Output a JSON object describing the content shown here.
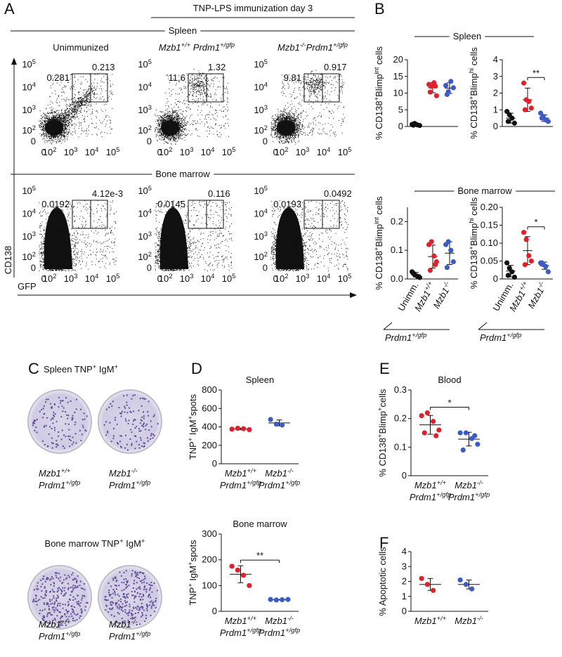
{
  "panel_labels": [
    "A",
    "B",
    "C",
    "D",
    "E",
    "F"
  ],
  "flow": {
    "header": "TNP-LPS immunization day 3",
    "columns": [
      [
        "Unimmunized"
      ],
      [
        "Mzb1",
        "+/+",
        " Prdm1",
        "+/gfp"
      ],
      [
        "Mzb1",
        "-/-",
        "Prdm1",
        "+/gfp"
      ]
    ],
    "rows": [
      {
        "title": "Spleen",
        "gates": [
          [
            0.281,
            0.213
          ],
          [
            11.6,
            1.32
          ],
          [
            9.81,
            0.917
          ]
        ]
      },
      {
        "title": "Bone marrow",
        "gates": [
          [
            0.0192,
            {
              "value": 0.00412,
              "label": "4.12e-3"
            }
          ],
          [
            0.0145,
            0.116
          ],
          [
            0.0193,
            0.0492
          ]
        ]
      }
    ],
    "y_ticks": [
      [
        "10",
        "5"
      ],
      [
        "10",
        "4"
      ],
      [
        "10",
        "3"
      ],
      [
        "10",
        "2"
      ],
      [
        "0"
      ]
    ],
    "x_ticks": [
      [
        "0"
      ],
      [
        "10",
        "2"
      ],
      [
        "10",
        "3"
      ],
      [
        "10",
        "4"
      ],
      [
        "10",
        "5"
      ]
    ],
    "y_label": "CD138",
    "x_label": "GFP"
  },
  "sections": [
    "Spleen",
    "Bone marrow"
  ],
  "elispot": {
    "rows": [
      {
        "title": [
          "Spleen TNP",
          "+",
          " IgM",
          "+"
        ],
        "wells": [
          [
            [
              "Mzb1",
              "+/+"
            ],
            [
              "Prdm1",
              "+/gfp"
            ]
          ],
          [
            [
              "Mzb1",
              "-/-"
            ],
            [
              "Prdm1",
              "+/gfp"
            ]
          ]
        ]
      },
      {
        "title": [
          "Bone marrow TNP",
          "+",
          " IgM",
          "+"
        ],
        "wells": [
          [
            [
              "Mzb1",
              "+/+"
            ],
            [
              "Prdm1",
              "+/gfp"
            ]
          ],
          [
            [
              "Mzb1",
              "-/-"
            ],
            [
              "Prdm1",
              "+/gfp"
            ]
          ]
        ]
      }
    ]
  },
  "chart_data": [
    {
      "type": "dot",
      "y_label": [
        "% CD138",
        "+",
        "Blimp",
        "int",
        " cells"
      ],
      "ylim": [
        0,
        20
      ],
      "yticks": [
        0,
        5,
        10,
        15,
        20
      ],
      "series": [
        {
          "color": "#111111",
          "values": [
            0.6,
            0.9,
            0.5,
            0.3,
            0.4
          ],
          "mean": 0.5,
          "sd": 0.2
        },
        {
          "color": "#e0202a",
          "values": [
            12.6,
            12.0,
            13.1,
            9.2,
            10.3,
            12.1
          ],
          "mean": 11.6,
          "sd": 1.5
        },
        {
          "color": "#3c5bc4",
          "values": [
            12.3,
            10.4,
            13.5,
            11.6,
            9.6
          ],
          "mean": 11.5,
          "sd": 1.6
        }
      ]
    },
    {
      "type": "dot",
      "y_label": [
        "% CD138",
        "+",
        "Blimp",
        "hi",
        " cells"
      ],
      "ylim": [
        0,
        4
      ],
      "yticks": [
        0,
        1,
        2,
        3,
        4
      ],
      "significance": "**",
      "series": [
        {
          "color": "#111111",
          "values": [
            0.9,
            0.7,
            0.5,
            0.2,
            0.3
          ],
          "mean": 0.5,
          "sd": 0.3
        },
        {
          "color": "#e0202a",
          "values": [
            2.6,
            1.6,
            1.5,
            1.1,
            1.0
          ],
          "mean": 1.6,
          "sd": 0.7
        },
        {
          "color": "#3c5bc4",
          "values": [
            0.8,
            0.6,
            0.4,
            0.3,
            0.5
          ],
          "mean": 0.5,
          "sd": 0.2
        }
      ]
    },
    {
      "type": "dot",
      "y_label": [
        "% CD138",
        "+",
        "Blimp",
        "int",
        " cells"
      ],
      "ylim": [
        0,
        0.25
      ],
      "yticks": [
        {
          "value": 0,
          "label": "0.0"
        },
        0.1,
        0.2
      ],
      "x_group_label": [
        "Prdm1",
        "+/gfp"
      ],
      "series": [
        {
          "name": [
            [
              "Unimm."
            ]
          ],
          "color": "#111111",
          "values": [
            0.025,
            0.015,
            0.01,
            0.005,
            0.02
          ],
          "mean": 0.015,
          "sd": 0.008
        },
        {
          "name": [
            [
              "Mzb1",
              "+/+"
            ]
          ],
          "color": "#e0202a",
          "values": [
            0.12,
            0.13,
            0.08,
            0.06,
            0.03,
            0.05
          ],
          "mean": 0.078,
          "sd": 0.04
        },
        {
          "name": [
            [
              "Mzb1",
              "-/-"
            ]
          ],
          "color": "#3c5bc4",
          "values": [
            0.12,
            0.13,
            0.1,
            0.06,
            0.04
          ],
          "mean": 0.09,
          "sd": 0.04
        }
      ]
    },
    {
      "type": "dot",
      "y_label": [
        "% CD138",
        "+",
        "Blimp",
        "hi",
        " cells"
      ],
      "ylim": [
        0,
        0.2
      ],
      "yticks": [
        0,
        0.05,
        {
          "value": 0.1,
          "label": "0.10"
        },
        0.15,
        {
          "value": 0.2,
          "label": "0.20"
        }
      ],
      "significance": "*",
      "x_group_label": [
        "Prdm1",
        "+/gfp"
      ],
      "series": [
        {
          "name": [
            [
              "Unimm."
            ]
          ],
          "color": "#111111",
          "values": [
            0.045,
            0.03,
            0.02,
            0.005,
            0.01
          ],
          "mean": 0.022,
          "sd": 0.016
        },
        {
          "name": [
            [
              "Mzb1",
              "+/+"
            ]
          ],
          "color": "#e0202a",
          "values": [
            0.13,
            0.11,
            0.065,
            0.05,
            0.04
          ],
          "mean": 0.079,
          "sd": 0.039
        },
        {
          "name": [
            [
              "Mzb1",
              "-/-"
            ]
          ],
          "color": "#3c5bc4",
          "values": [
            0.045,
            0.04,
            0.035,
            0.02,
            0.045
          ],
          "mean": 0.037,
          "sd": 0.01
        }
      ]
    },
    {
      "type": "dot",
      "title": "Spleen",
      "y_label": [
        "TNP",
        "+",
        " IgM",
        "+",
        "spots"
      ],
      "ylim": [
        0,
        800
      ],
      "yticks": [
        0,
        200,
        400,
        600,
        800
      ],
      "series": [
        {
          "name": [
            [
              "Mzb1",
              "+/+"
            ],
            [
              "Prdm1",
              "+/gfp"
            ]
          ],
          "color": "#e0202a",
          "values": [
            375,
            385,
            380,
            370
          ],
          "mean": 378,
          "sd": 8
        },
        {
          "name": [
            [
              "Mzb1",
              "-/-"
            ],
            [
              "Prdm1",
              "+/gfp"
            ]
          ],
          "color": "#3c5bc4",
          "values": [
            480,
            430,
            420
          ],
          "mean": 443,
          "sd": 32
        }
      ]
    },
    {
      "type": "dot",
      "title": "Bone marrow",
      "y_label": [
        "TNP",
        "+",
        " IgM",
        "+",
        "spots"
      ],
      "ylim": [
        0,
        300
      ],
      "yticks": [
        0,
        100,
        200,
        300
      ],
      "significance": "**",
      "series": [
        {
          "name": [
            [
              "Mzb1",
              "+/+"
            ],
            [
              "Prdm1",
              "+/gfp"
            ]
          ],
          "color": "#e0202a",
          "values": [
            175,
            160,
            140,
            100
          ],
          "mean": 144,
          "sd": 33
        },
        {
          "name": [
            [
              "Mzb1",
              "-/-"
            ],
            [
              "Prdm1",
              "+/gfp"
            ]
          ],
          "color": "#3c5bc4",
          "values": [
            46,
            44,
            45,
            46
          ],
          "mean": 45,
          "sd": 1
        }
      ]
    },
    {
      "type": "dot",
      "title": "Blood",
      "y_label": [
        "% CD138",
        "+",
        "Blimp",
        "+",
        "cells"
      ],
      "ylim": [
        0,
        0.3
      ],
      "yticks": [
        0,
        0.1,
        0.2,
        0.3
      ],
      "significance": "*",
      "series": [
        {
          "name": [
            [
              "Mzb1",
              "+/+"
            ],
            [
              "Prdm1",
              "+/gfp"
            ]
          ],
          "color": "#e0202a",
          "values": [
            0.21,
            0.22,
            0.19,
            0.16,
            0.15,
            0.14
          ],
          "mean": 0.178,
          "sd": 0.033
        },
        {
          "name": [
            [
              "Mzb1",
              "-/-"
            ],
            [
              "Prdm1",
              "+/gfp"
            ]
          ],
          "color": "#3c5bc4",
          "values": [
            0.15,
            0.15,
            0.13,
            0.11,
            0.09,
            0.14
          ],
          "mean": 0.128,
          "sd": 0.024
        }
      ]
    },
    {
      "type": "dot",
      "y_label": [
        "% Apoptotic cells"
      ],
      "ylim": [
        0,
        4
      ],
      "yticks": [
        0,
        1,
        2,
        3,
        4
      ],
      "series": [
        {
          "name": [
            [
              "Mzb1",
              "+/+"
            ]
          ],
          "color": "#e0202a",
          "values": [
            2.2,
            1.8,
            1.4
          ],
          "mean": 1.8,
          "sd": 0.4
        },
        {
          "name": [
            [
              "Mzb1",
              "-/-"
            ]
          ],
          "color": "#3c5bc4",
          "values": [
            2.1,
            1.8,
            1.5
          ],
          "mean": 1.8,
          "sd": 0.3
        }
      ]
    }
  ]
}
